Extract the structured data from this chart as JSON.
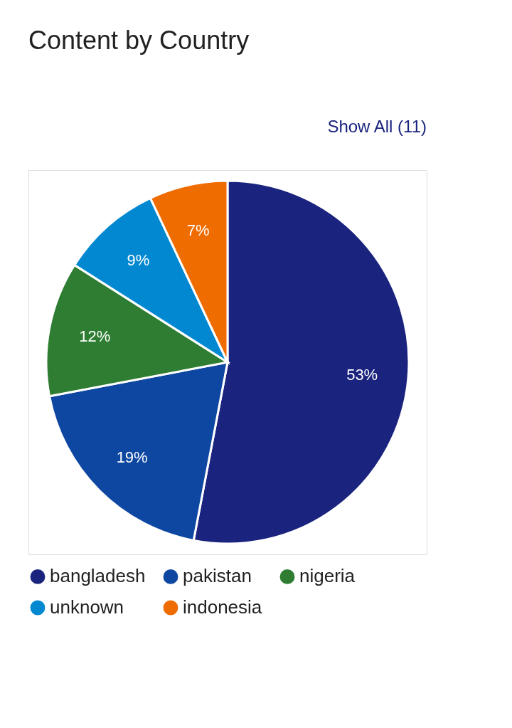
{
  "chart_data": {
    "type": "pie",
    "title": "Content by Country",
    "annotations": [
      "Show All (11)"
    ],
    "categories": [
      "bangladesh",
      "pakistan",
      "nigeria",
      "unknown",
      "indonesia"
    ],
    "values": [
      53,
      19,
      12,
      9,
      7
    ],
    "colors": [
      "#1a237e",
      "#0d47a1",
      "#2e7d32",
      "#0288d1",
      "#ef6c00"
    ],
    "value_labels": [
      "53%",
      "19%",
      "12%",
      "9%",
      "7%"
    ],
    "legend": "bottom"
  }
}
